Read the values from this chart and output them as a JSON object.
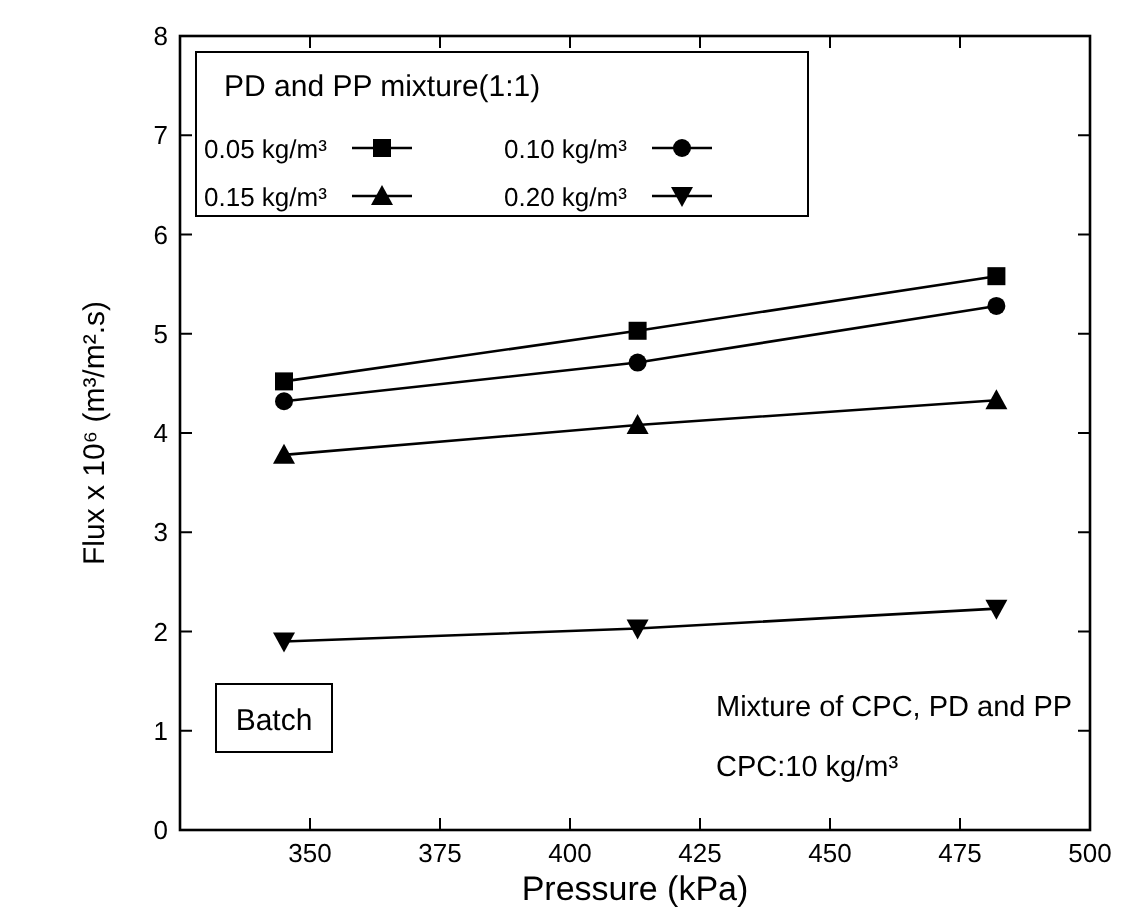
{
  "chart_data": {
    "type": "line",
    "xlabel": "Pressure (kPa)",
    "ylabel": "Flux x 10⁶ (m³/m².s)",
    "legend_title": "PD and PP mixture(1:1)",
    "legend": "top left",
    "x": [
      345,
      413,
      482
    ],
    "xlim": [
      325,
      500
    ],
    "xticks": [
      350,
      375,
      400,
      425,
      450,
      475,
      500
    ],
    "ylim": [
      0,
      8
    ],
    "yticks": [
      0,
      1,
      2,
      3,
      4,
      5,
      6,
      7,
      8
    ],
    "grid": false,
    "series": [
      {
        "name": "0.05 kg/m³",
        "color": "#000000",
        "marker": "square",
        "values": [
          4.52,
          5.03,
          5.58
        ]
      },
      {
        "name": "0.10 kg/m³",
        "color": "#000000",
        "marker": "circle",
        "values": [
          4.32,
          4.71,
          5.28
        ]
      },
      {
        "name": "0.15 kg/m³",
        "color": "#000000",
        "marker": "triangle",
        "values": [
          3.78,
          4.08,
          4.33
        ]
      },
      {
        "name": "0.20 kg/m³",
        "color": "#000000",
        "marker": "triangle-down",
        "values": [
          1.9,
          2.03,
          2.23
        ]
      }
    ],
    "annotations": [
      "Batch",
      "Mixture of CPC, PD and PP",
      "CPC:10 kg/m³"
    ]
  }
}
